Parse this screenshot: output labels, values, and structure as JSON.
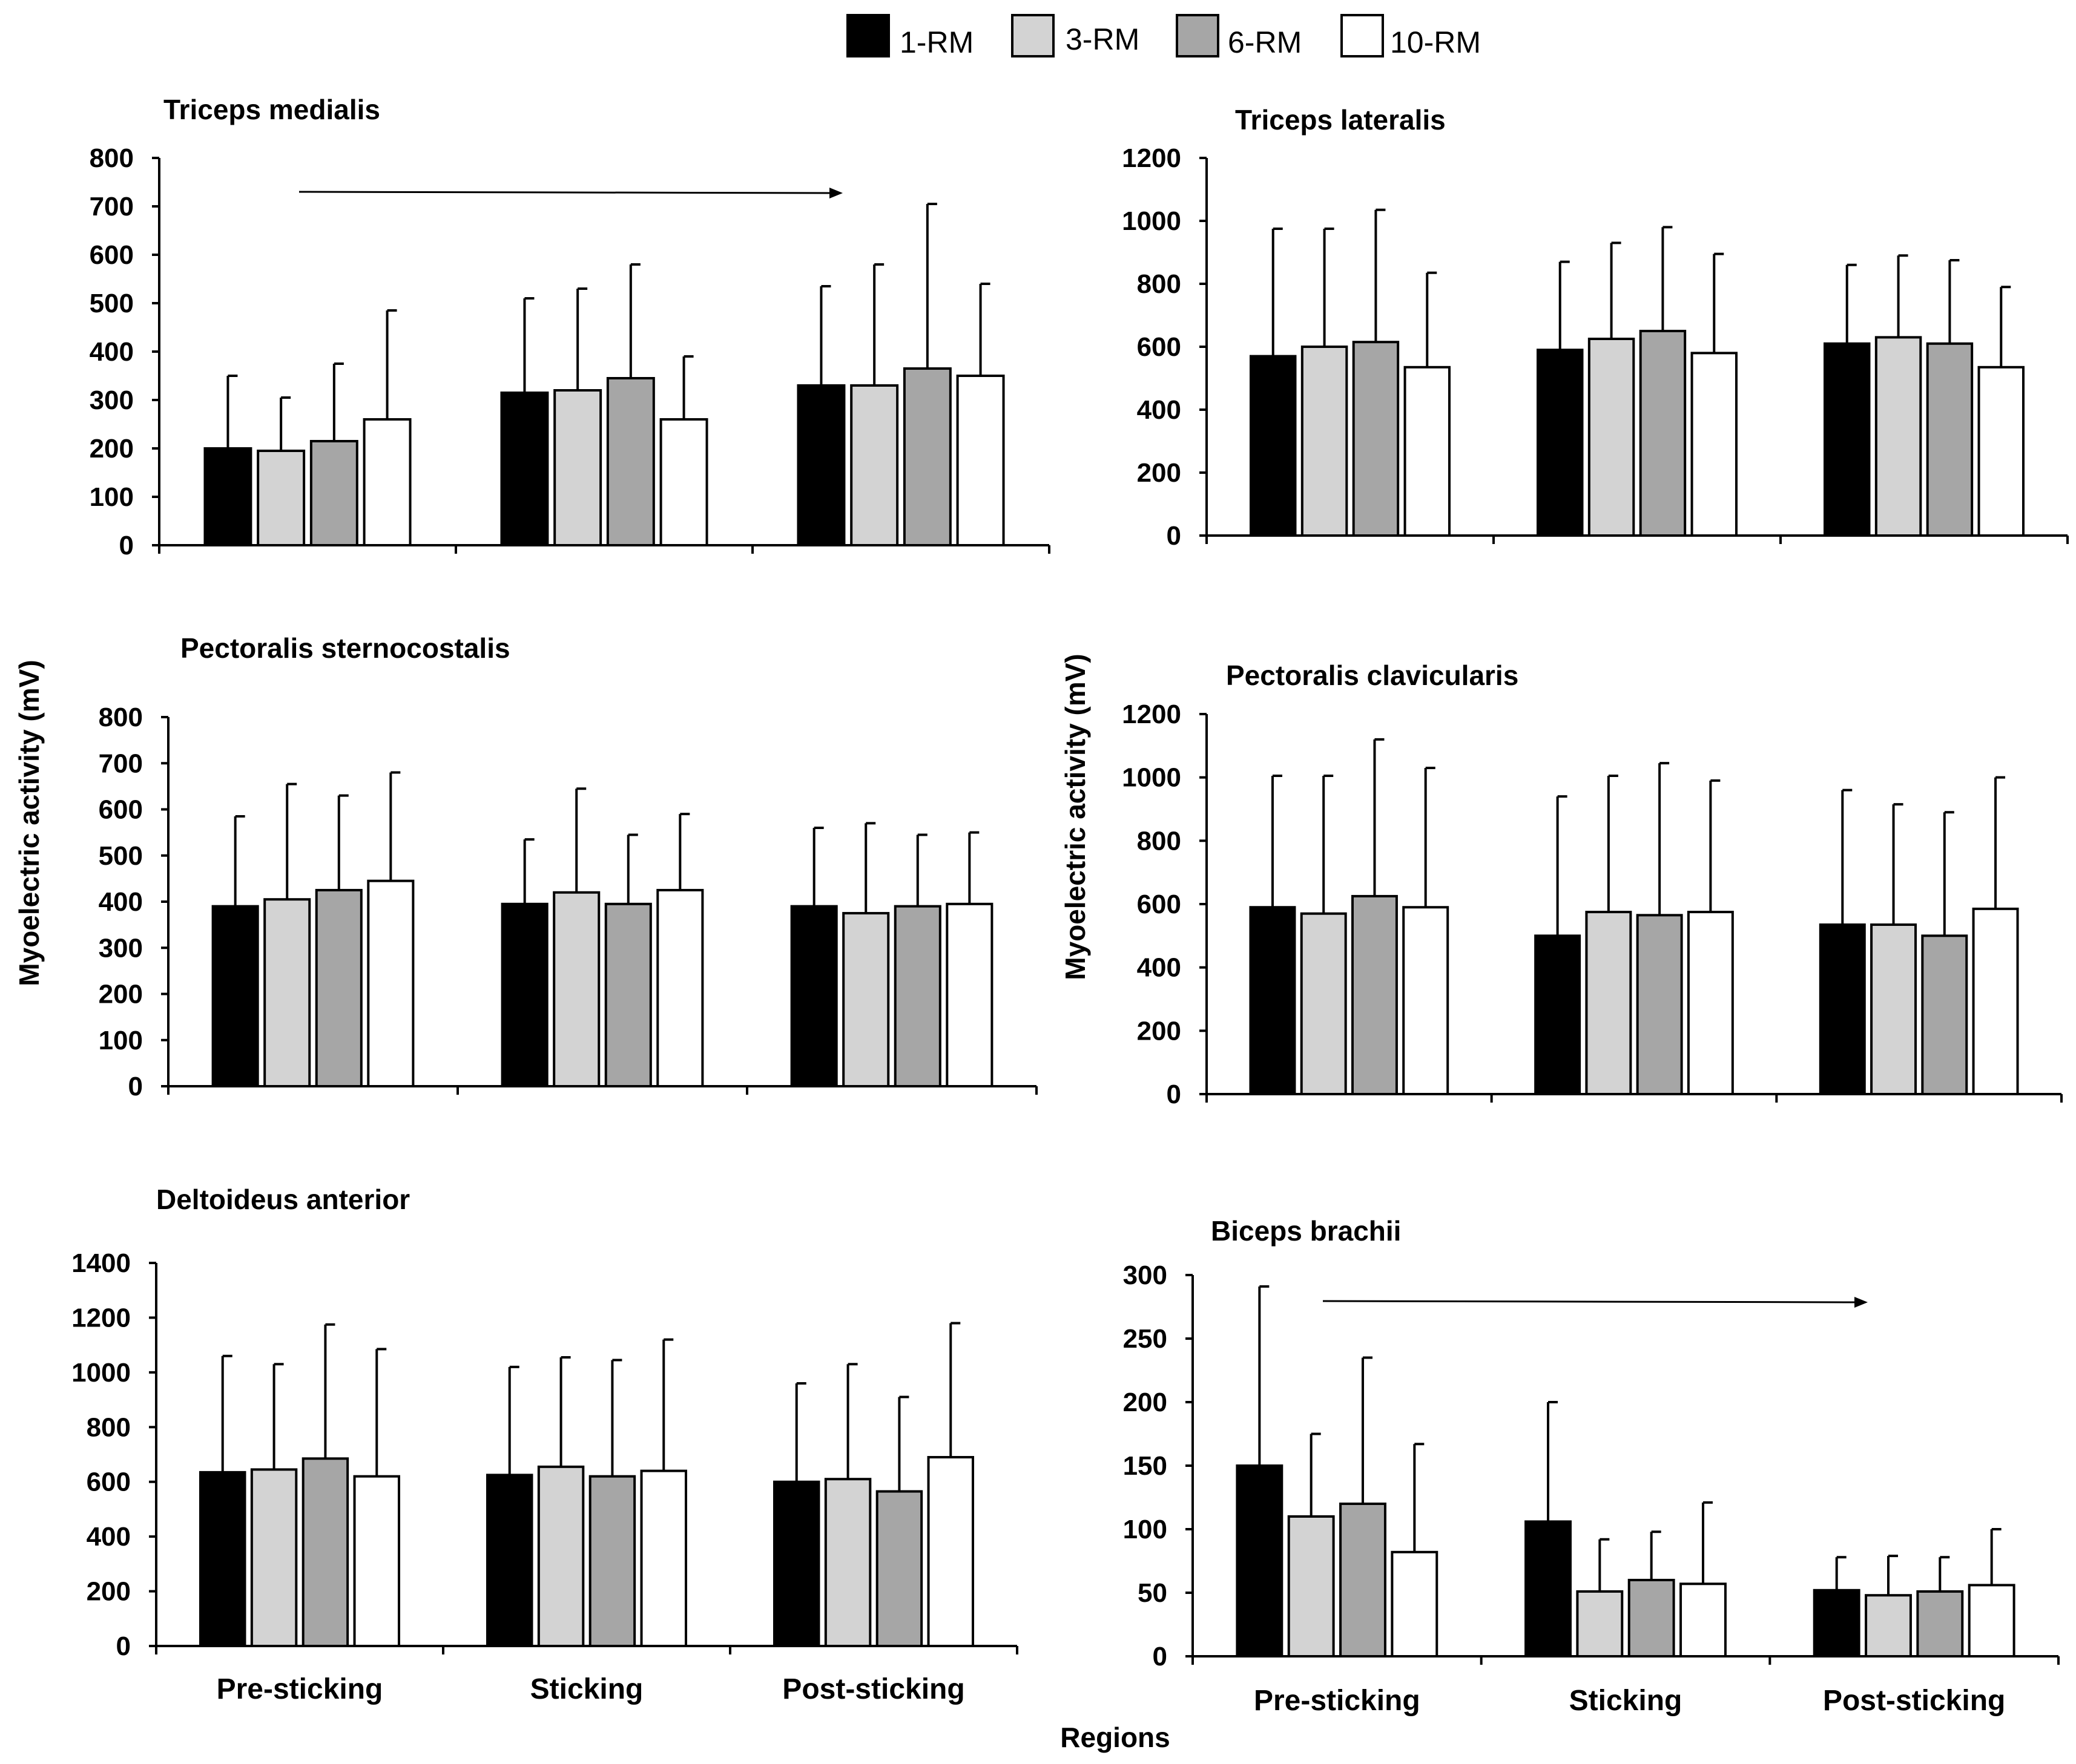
{
  "legend": [
    {
      "label": "1-RM",
      "color": "#000000"
    },
    {
      "label": "3-RM",
      "color": "#d3d3d3"
    },
    {
      "label": "6-RM",
      "color": "#a6a6a6"
    },
    {
      "label": "10-RM",
      "color": "#ffffff"
    }
  ],
  "y_label": "Myoelectric activity (mV)",
  "x_label": "Regions",
  "chart_data": [
    {
      "type": "bar",
      "title": "Triceps medialis",
      "categories": [
        "Pre-sticking",
        "Sticking",
        "Post-sticking"
      ],
      "ylim": [
        0,
        800
      ],
      "ystep": 100,
      "show_category_labels": false,
      "arrow": true,
      "series": [
        {
          "name": "1-RM",
          "values": [
            200,
            315,
            330
          ],
          "errors": [
            150,
            195,
            205
          ]
        },
        {
          "name": "3-RM",
          "values": [
            195,
            320,
            330
          ],
          "errors": [
            110,
            210,
            250
          ]
        },
        {
          "name": "6-RM",
          "values": [
            215,
            345,
            365
          ],
          "errors": [
            160,
            235,
            340
          ]
        },
        {
          "name": "10-RM",
          "values": [
            260,
            260,
            350
          ],
          "errors": [
            225,
            130,
            190
          ]
        }
      ]
    },
    {
      "type": "bar",
      "title": "Triceps lateralis",
      "categories": [
        "Pre-sticking",
        "Sticking",
        "Post-sticking"
      ],
      "ylim": [
        0,
        1200
      ],
      "ystep": 200,
      "show_category_labels": false,
      "arrow": false,
      "series": [
        {
          "name": "1-RM",
          "values": [
            570,
            590,
            610
          ],
          "errors": [
            405,
            280,
            250
          ]
        },
        {
          "name": "3-RM",
          "values": [
            600,
            625,
            630
          ],
          "errors": [
            375,
            305,
            260
          ]
        },
        {
          "name": "6-RM",
          "values": [
            615,
            650,
            610
          ],
          "errors": [
            420,
            330,
            265
          ]
        },
        {
          "name": "10-RM",
          "values": [
            535,
            580,
            535
          ],
          "errors": [
            300,
            315,
            255
          ]
        }
      ]
    },
    {
      "type": "bar",
      "title": "Pectoralis sternocostalis",
      "categories": [
        "Pre-sticking",
        "Sticking",
        "Post-sticking"
      ],
      "ylim": [
        0,
        800
      ],
      "ystep": 100,
      "show_category_labels": false,
      "arrow": false,
      "ylabel": true,
      "series": [
        {
          "name": "1-RM",
          "values": [
            390,
            395,
            390
          ],
          "errors": [
            195,
            140,
            170
          ]
        },
        {
          "name": "3-RM",
          "values": [
            405,
            420,
            375
          ],
          "errors": [
            250,
            225,
            195
          ]
        },
        {
          "name": "6-RM",
          "values": [
            425,
            395,
            390
          ],
          "errors": [
            205,
            150,
            155
          ]
        },
        {
          "name": "10-RM",
          "values": [
            445,
            425,
            395
          ],
          "errors": [
            235,
            165,
            155
          ]
        }
      ]
    },
    {
      "type": "bar",
      "title": "Pectoralis clavicularis",
      "categories": [
        "Pre-sticking",
        "Sticking",
        "Post-sticking"
      ],
      "ylim": [
        0,
        1200
      ],
      "ystep": 200,
      "show_category_labels": false,
      "arrow": false,
      "ylabel": true,
      "series": [
        {
          "name": "1-RM",
          "values": [
            590,
            500,
            535
          ],
          "errors": [
            415,
            440,
            425
          ]
        },
        {
          "name": "3-RM",
          "values": [
            570,
            575,
            535
          ],
          "errors": [
            435,
            430,
            380
          ]
        },
        {
          "name": "6-RM",
          "values": [
            625,
            565,
            500
          ],
          "errors": [
            495,
            480,
            390
          ]
        },
        {
          "name": "10-RM",
          "values": [
            590,
            575,
            585
          ],
          "errors": [
            440,
            415,
            415
          ]
        }
      ]
    },
    {
      "type": "bar",
      "title": "Deltoideus anterior",
      "categories": [
        "Pre-sticking",
        "Sticking",
        "Post-sticking"
      ],
      "ylim": [
        0,
        1400
      ],
      "ystep": 200,
      "show_category_labels": true,
      "arrow": false,
      "series": [
        {
          "name": "1-RM",
          "values": [
            635,
            625,
            600
          ],
          "errors": [
            425,
            395,
            360
          ]
        },
        {
          "name": "3-RM",
          "values": [
            645,
            655,
            610
          ],
          "errors": [
            385,
            400,
            420
          ]
        },
        {
          "name": "6-RM",
          "values": [
            685,
            620,
            565
          ],
          "errors": [
            490,
            425,
            345
          ]
        },
        {
          "name": "10-RM",
          "values": [
            620,
            640,
            690
          ],
          "errors": [
            465,
            480,
            490
          ]
        }
      ]
    },
    {
      "type": "bar",
      "title": "Biceps brachii",
      "categories": [
        "Pre-sticking",
        "Sticking",
        "Post-sticking"
      ],
      "ylim": [
        0,
        300
      ],
      "ystep": 50,
      "show_category_labels": true,
      "arrow": true,
      "xlabel": true,
      "series": [
        {
          "name": "1-RM",
          "values": [
            150,
            106,
            52
          ],
          "errors": [
            141,
            94,
            26
          ]
        },
        {
          "name": "3-RM",
          "values": [
            110,
            51,
            48
          ],
          "errors": [
            65,
            41,
            31
          ]
        },
        {
          "name": "6-RM",
          "values": [
            120,
            60,
            51
          ],
          "errors": [
            115,
            38,
            27
          ]
        },
        {
          "name": "10-RM",
          "values": [
            82,
            57,
            56
          ],
          "errors": [
            85,
            64,
            44
          ]
        }
      ]
    }
  ]
}
